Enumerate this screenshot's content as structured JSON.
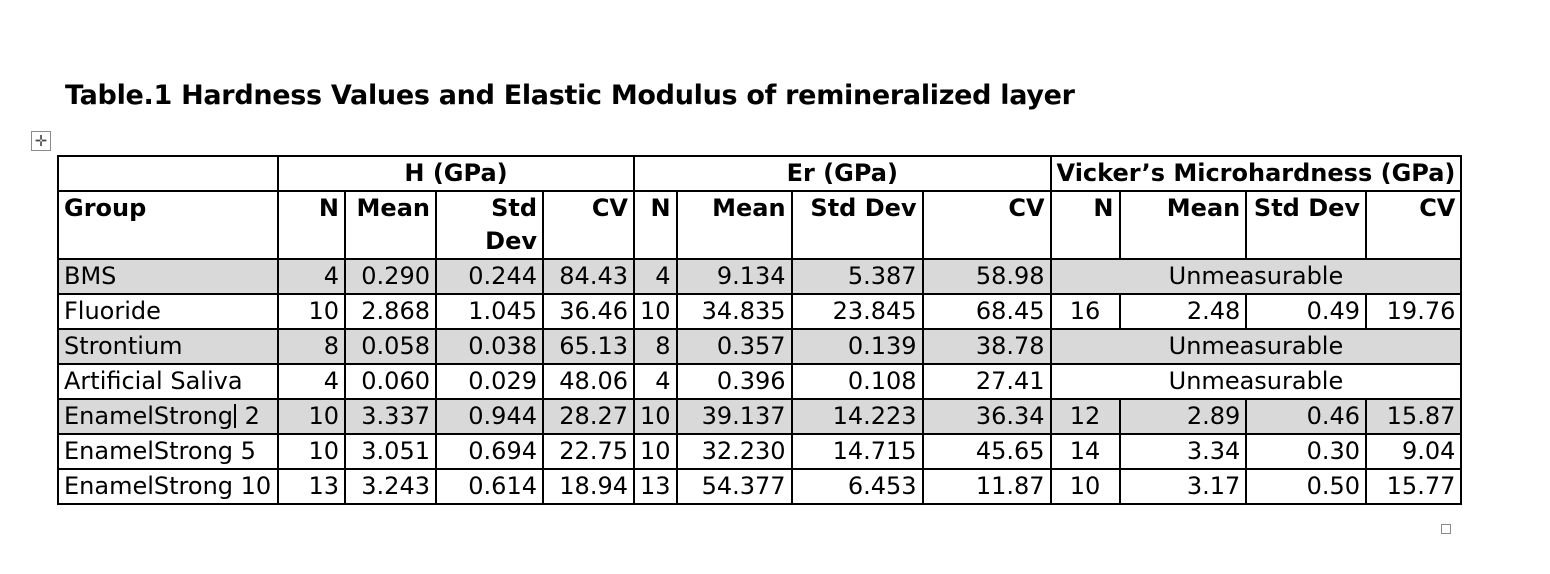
{
  "caption": "Table.1 Hardness Values and Elastic Modulus of remineralized layer",
  "header": {
    "groups": {
      "h": "H (GPa)",
      "er": "Er (GPa)",
      "vickers": "Vicker’s Microhardness (GPa)"
    },
    "columns": {
      "group": "Group",
      "h_n": "N",
      "h_mean": "Mean",
      "h_sd": "Std Dev",
      "h_cv": "CV",
      "er_n": "N",
      "er_mean": "Mean",
      "er_sd": "Std Dev",
      "er_cv": "CV",
      "v_n": "N",
      "v_mean": "Mean",
      "v_sd": "Std Dev",
      "v_cv": "CV"
    }
  },
  "rows": [
    {
      "group": "BMS",
      "h_n": "4",
      "h_mean": "0.290",
      "h_sd": "0.244",
      "h_cv": "84.43",
      "er_n": "4",
      "er_mean": "9.134",
      "er_sd": "5.387",
      "er_cv": "58.98",
      "vickers_note": "Unmeasurable"
    },
    {
      "group": "Fluoride",
      "h_n": "10",
      "h_mean": "2.868",
      "h_sd": "1.045",
      "h_cv": "36.46",
      "er_n": "10",
      "er_mean": "34.835",
      "er_sd": "23.845",
      "er_cv": "68.45",
      "v_n": "16",
      "v_mean": "2.48",
      "v_sd": "0.49",
      "v_cv": "19.76"
    },
    {
      "group": "Strontium",
      "h_n": "8",
      "h_mean": "0.058",
      "h_sd": "0.038",
      "h_cv": "65.13",
      "er_n": "8",
      "er_mean": "0.357",
      "er_sd": "0.139",
      "er_cv": "38.78",
      "vickers_note": "Unmeasurable"
    },
    {
      "group": "Artificial Saliva",
      "h_n": "4",
      "h_mean": "0.060",
      "h_sd": "0.029",
      "h_cv": "48.06",
      "er_n": "4",
      "er_mean": "0.396",
      "er_sd": "0.108",
      "er_cv": "27.41",
      "vickers_note": "Unmeasurable"
    },
    {
      "group_a": "EnamelStrong",
      "group_b": " 2",
      "h_n": "10",
      "h_mean": "3.337",
      "h_sd": "0.944",
      "h_cv": "28.27",
      "er_n": "10",
      "er_mean": "39.137",
      "er_sd": "14.223",
      "er_cv": "36.34",
      "v_n": "12",
      "v_mean": "2.89",
      "v_sd": "0.46",
      "v_cv": "15.87"
    },
    {
      "group": "EnamelStrong 5",
      "h_n": "10",
      "h_mean": "3.051",
      "h_sd": "0.694",
      "h_cv": "22.75",
      "er_n": "10",
      "er_mean": "32.230",
      "er_sd": "14.715",
      "er_cv": "45.65",
      "v_n": "14",
      "v_mean": "3.34",
      "v_sd": "0.30",
      "v_cv": "9.04"
    },
    {
      "group": "EnamelStrong 10",
      "h_n": "13",
      "h_mean": "3.243",
      "h_sd": "0.614",
      "h_cv": "18.94",
      "er_n": "13",
      "er_mean": "54.377",
      "er_sd": "6.453",
      "er_cv": "11.87",
      "v_n": "10",
      "v_mean": "3.17",
      "v_sd": "0.50",
      "v_cv": "15.77"
    }
  ]
}
